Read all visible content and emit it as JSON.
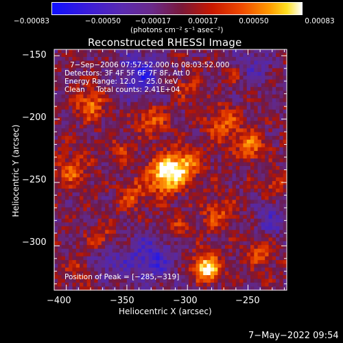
{
  "colorbar": {
    "ticks": [
      "−0.00083",
      "−0.00050",
      "−0.00017",
      "0.00017",
      "0.00050",
      "0.00083"
    ],
    "units": "(photons cm⁻² s⁻¹ asec⁻²)"
  },
  "chart_data": {
    "type": "heatmap",
    "title": "Reconstructed RHESSI Image",
    "xlabel": "Heliocentric X (arcsec)",
    "ylabel": "Heliocentric Y (arcsec)",
    "xlim": [
      -410,
      -218
    ],
    "ylim": [
      -335,
      -145
    ],
    "xticks": [
      -400,
      -350,
      -300,
      -250
    ],
    "yticks": [
      -150,
      -200,
      -250,
      -300
    ],
    "xtick_labels": [
      "−400",
      "−350",
      "−300",
      "−250"
    ],
    "ytick_labels": [
      "−150",
      "−200",
      "−250",
      "−300"
    ],
    "colormap": "blue-purple-red-yellow-white (RHESSI)",
    "color_range": [
      -0.00083,
      0.00083
    ],
    "annotations": {
      "time": "7−Sep−2006 07:57:52.000 to 08:03:52.000",
      "detectors": "Detectors: 3F 4F 5F 6F 7F 8F, Att 0",
      "energy": "Energy Range: 12.0 − 25.0 keV",
      "clean": "Clean     Total counts: 2.41E+04",
      "peak": "Position of Peak = [−285,−319]"
    },
    "peak_position": [
      -285,
      -319
    ]
  },
  "timestamp": "7−May−2022 09:54"
}
